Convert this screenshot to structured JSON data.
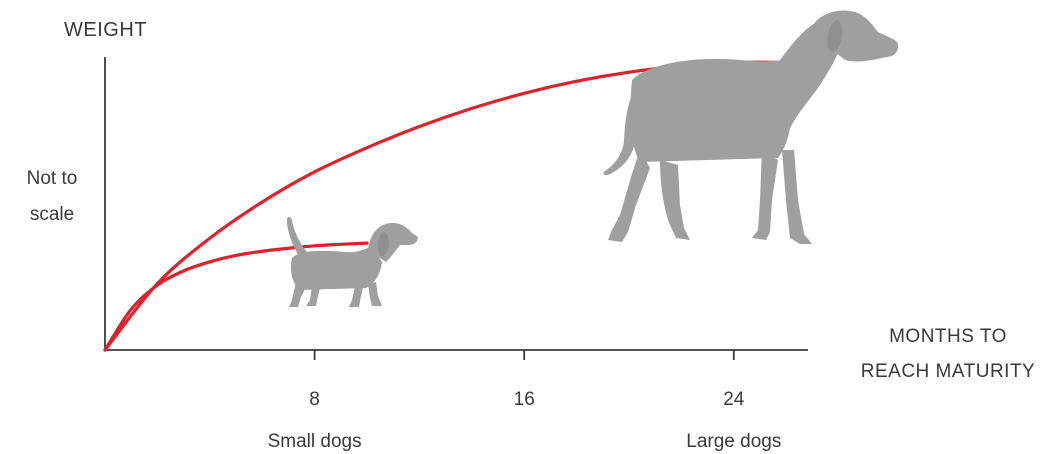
{
  "chart_data": {
    "type": "line",
    "ylabel": "WEIGHT",
    "xlabel_line1": "MONTHS TO",
    "xlabel_line2": "REACH MATURITY",
    "note_line1": "Not to",
    "note_line2": "scale",
    "xlim": [
      0,
      26.5
    ],
    "ylim": [
      0,
      1
    ],
    "x_ticks": [
      8,
      16,
      24
    ],
    "x_tick_labels": [
      "8",
      "16",
      "24"
    ],
    "category_labels": [
      {
        "x": 8,
        "label": "Small dogs"
      },
      {
        "x": 24,
        "label": "Large dogs"
      }
    ],
    "series": [
      {
        "values": [
          [
            0,
            0
          ],
          [
            2,
            0.22
          ],
          [
            4,
            0.37
          ],
          [
            6,
            0.49
          ],
          [
            8,
            0.59
          ],
          [
            10,
            0.67
          ],
          [
            12,
            0.74
          ],
          [
            14,
            0.8
          ],
          [
            16,
            0.85
          ],
          [
            18,
            0.89
          ],
          [
            20,
            0.92
          ],
          [
            22,
            0.94
          ],
          [
            24,
            0.952
          ],
          [
            26,
            0.952
          ]
        ]
      },
      {
        "values": [
          [
            0,
            0
          ],
          [
            1,
            0.135
          ],
          [
            2,
            0.215
          ],
          [
            3,
            0.262
          ],
          [
            4,
            0.292
          ],
          [
            5,
            0.313
          ],
          [
            6,
            0.327
          ],
          [
            7,
            0.337
          ],
          [
            8,
            0.345
          ],
          [
            9,
            0.35
          ],
          [
            10,
            0.354
          ]
        ]
      }
    ],
    "colors": {
      "line": "#e0212b",
      "axis": "#3a3a3a",
      "dog": "#9d9fa0"
    },
    "icons": [
      "small-dog-silhouette",
      "large-dog-silhouette"
    ]
  }
}
